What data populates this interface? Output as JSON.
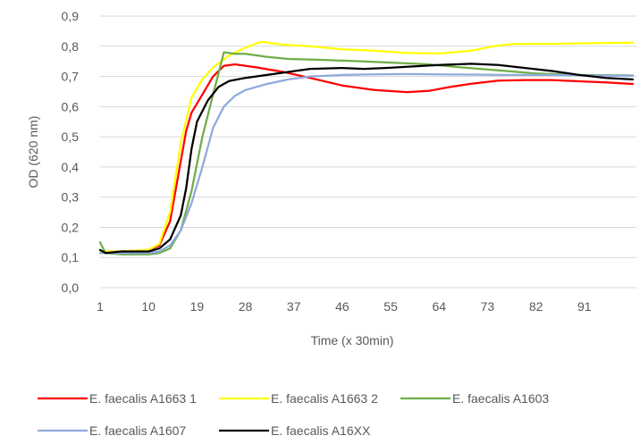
{
  "chart_data": {
    "type": "line",
    "title": "",
    "xlabel": "Time (x 30min)",
    "ylabel": "OD  (620 nm)",
    "ylim": [
      0,
      0.9
    ],
    "xlim": [
      1,
      100
    ],
    "y_ticks": [
      "0,0",
      "0,1",
      "0,2",
      "0,3",
      "0,4",
      "0,5",
      "0,6",
      "0,7",
      "0,8",
      "0,9"
    ],
    "x_ticks": [
      {
        "value": 1,
        "label": "1"
      },
      {
        "value": 10,
        "label": "10"
      },
      {
        "value": 19,
        "label": "19"
      },
      {
        "value": 28,
        "label": "28"
      },
      {
        "value": 37,
        "label": "37"
      },
      {
        "value": 46,
        "label": "46"
      },
      {
        "value": 55,
        "label": "55"
      },
      {
        "value": 64,
        "label": "64"
      },
      {
        "value": 73,
        "label": "73"
      },
      {
        "value": 82,
        "label": "82"
      },
      {
        "value": 91,
        "label": "91"
      }
    ],
    "grid": true,
    "legend_position": "bottom",
    "series": [
      {
        "name": "E. faecalis A1663 1",
        "color": "#ff0000",
        "points": [
          [
            1,
            0.12
          ],
          [
            5,
            0.12
          ],
          [
            10,
            0.125
          ],
          [
            12,
            0.14
          ],
          [
            14,
            0.22
          ],
          [
            16,
            0.42
          ],
          [
            17,
            0.52
          ],
          [
            18,
            0.58
          ],
          [
            20,
            0.64
          ],
          [
            22,
            0.7
          ],
          [
            24,
            0.735
          ],
          [
            26,
            0.74
          ],
          [
            30,
            0.73
          ],
          [
            35,
            0.715
          ],
          [
            40,
            0.695
          ],
          [
            46,
            0.67
          ],
          [
            52,
            0.655
          ],
          [
            58,
            0.648
          ],
          [
            62,
            0.652
          ],
          [
            66,
            0.665
          ],
          [
            70,
            0.676
          ],
          [
            75,
            0.686
          ],
          [
            80,
            0.688
          ],
          [
            85,
            0.688
          ],
          [
            90,
            0.684
          ],
          [
            95,
            0.68
          ],
          [
            100,
            0.675
          ]
        ]
      },
      {
        "name": "E. faecalis A1663 2",
        "color": "#ffff00",
        "points": [
          [
            1,
            0.12
          ],
          [
            5,
            0.12
          ],
          [
            10,
            0.125
          ],
          [
            12,
            0.145
          ],
          [
            14,
            0.25
          ],
          [
            16,
            0.48
          ],
          [
            18,
            0.63
          ],
          [
            20,
            0.69
          ],
          [
            22,
            0.73
          ],
          [
            25,
            0.77
          ],
          [
            28,
            0.795
          ],
          [
            31,
            0.815
          ],
          [
            35,
            0.805
          ],
          [
            40,
            0.8
          ],
          [
            46,
            0.79
          ],
          [
            52,
            0.785
          ],
          [
            58,
            0.778
          ],
          [
            64,
            0.776
          ],
          [
            70,
            0.785
          ],
          [
            74,
            0.8
          ],
          [
            78,
            0.808
          ],
          [
            85,
            0.808
          ],
          [
            92,
            0.81
          ],
          [
            100,
            0.812
          ]
        ]
      },
      {
        "name": "E. faecalis A1603",
        "color": "#70ad47",
        "points": [
          [
            1,
            0.15
          ],
          [
            2,
            0.115
          ],
          [
            5,
            0.11
          ],
          [
            10,
            0.11
          ],
          [
            12,
            0.115
          ],
          [
            14,
            0.13
          ],
          [
            16,
            0.19
          ],
          [
            18,
            0.32
          ],
          [
            20,
            0.5
          ],
          [
            22,
            0.64
          ],
          [
            24,
            0.78
          ],
          [
            26,
            0.775
          ],
          [
            28,
            0.775
          ],
          [
            32,
            0.765
          ],
          [
            36,
            0.758
          ],
          [
            42,
            0.755
          ],
          [
            50,
            0.75
          ],
          [
            56,
            0.745
          ],
          [
            62,
            0.74
          ],
          [
            68,
            0.73
          ],
          [
            75,
            0.72
          ],
          [
            82,
            0.71
          ],
          [
            90,
            0.705
          ],
          [
            100,
            0.703
          ]
        ]
      },
      {
        "name": "E. faecalis A1607",
        "color": "#8faadc",
        "points": [
          [
            1,
            0.115
          ],
          [
            5,
            0.115
          ],
          [
            10,
            0.115
          ],
          [
            12,
            0.12
          ],
          [
            14,
            0.14
          ],
          [
            16,
            0.19
          ],
          [
            18,
            0.28
          ],
          [
            20,
            0.4
          ],
          [
            22,
            0.53
          ],
          [
            24,
            0.6
          ],
          [
            26,
            0.635
          ],
          [
            28,
            0.655
          ],
          [
            32,
            0.675
          ],
          [
            36,
            0.69
          ],
          [
            40,
            0.7
          ],
          [
            46,
            0.705
          ],
          [
            52,
            0.707
          ],
          [
            58,
            0.708
          ],
          [
            64,
            0.707
          ],
          [
            70,
            0.706
          ],
          [
            76,
            0.705
          ],
          [
            82,
            0.705
          ],
          [
            90,
            0.704
          ],
          [
            100,
            0.702
          ]
        ]
      },
      {
        "name": "E. faecalis A16XX",
        "color": "#000000",
        "points": [
          [
            1,
            0.125
          ],
          [
            2,
            0.115
          ],
          [
            5,
            0.12
          ],
          [
            10,
            0.12
          ],
          [
            12,
            0.13
          ],
          [
            14,
            0.16
          ],
          [
            16,
            0.24
          ],
          [
            17,
            0.33
          ],
          [
            18,
            0.46
          ],
          [
            19,
            0.55
          ],
          [
            21,
            0.62
          ],
          [
            23,
            0.665
          ],
          [
            25,
            0.685
          ],
          [
            28,
            0.695
          ],
          [
            32,
            0.705
          ],
          [
            36,
            0.715
          ],
          [
            40,
            0.725
          ],
          [
            46,
            0.728
          ],
          [
            50,
            0.725
          ],
          [
            54,
            0.728
          ],
          [
            58,
            0.732
          ],
          [
            64,
            0.738
          ],
          [
            70,
            0.742
          ],
          [
            75,
            0.738
          ],
          [
            80,
            0.728
          ],
          [
            85,
            0.718
          ],
          [
            90,
            0.705
          ],
          [
            95,
            0.695
          ],
          [
            100,
            0.69
          ]
        ]
      }
    ]
  }
}
